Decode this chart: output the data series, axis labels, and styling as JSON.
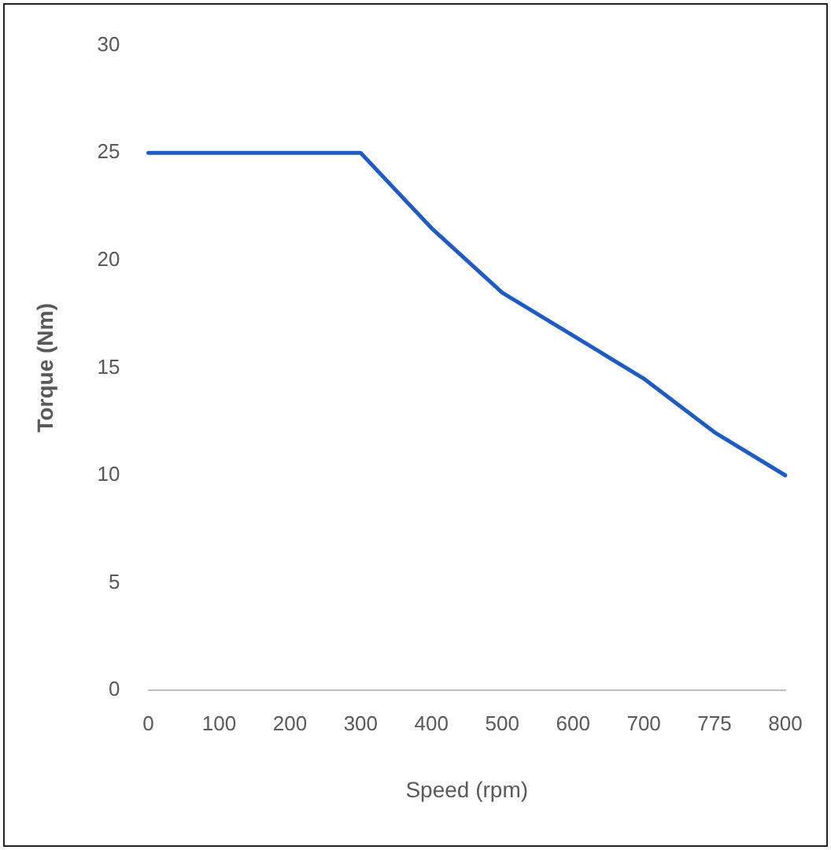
{
  "chart_data": {
    "type": "line",
    "xlabel": "Speed (rpm)",
    "ylabel": "Torque (Nm)",
    "categories": [
      "0",
      "100",
      "200",
      "300",
      "400",
      "500",
      "600",
      "700",
      "775",
      "800"
    ],
    "series": [
      {
        "color": "#1f5bc4",
        "values": [
          25,
          25,
          25,
          25,
          21.5,
          18.5,
          16.5,
          14.5,
          12,
          10
        ]
      }
    ],
    "ylim": [
      0,
      30
    ],
    "yticks": [
      0,
      5,
      10,
      15,
      20,
      25,
      30
    ],
    "grid": false,
    "legend": false,
    "marker": "none",
    "line_style": "solid"
  }
}
